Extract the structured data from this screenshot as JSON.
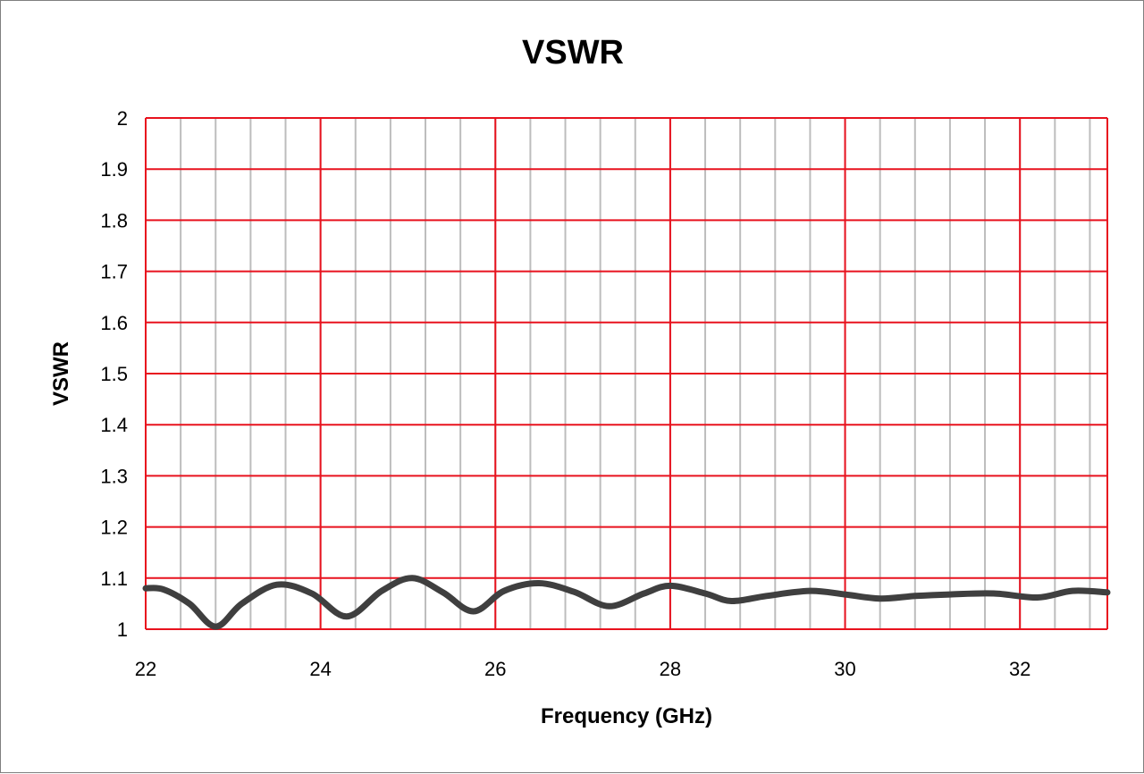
{
  "chart_data": {
    "type": "line",
    "title": "VSWR",
    "xlabel": "Frequency (GHz)",
    "ylabel": "VSWR",
    "xlim": [
      22,
      33
    ],
    "ylim": [
      1,
      2
    ],
    "x_major_ticks": [
      22,
      24,
      26,
      28,
      30,
      32
    ],
    "x_minor_step": 0.4,
    "y_ticks": [
      1,
      1.1,
      1.2,
      1.3,
      1.4,
      1.5,
      1.6,
      1.7,
      1.8,
      1.9,
      2
    ],
    "y_tick_labels": [
      "1",
      "1.1",
      "1.2",
      "1.3",
      "1.4",
      "1.5",
      "1.6",
      "1.7",
      "1.8",
      "1.9",
      "2"
    ],
    "grid": true,
    "legend": "none",
    "colors": {
      "major_grid": "#e8121e",
      "minor_grid": "#bdbdbd",
      "series_line": "#3f3f3f"
    },
    "series": [
      {
        "x": [
          22,
          22.2,
          22.5,
          22.8,
          23.1,
          23.5,
          23.9,
          24.3,
          24.7,
          25.05,
          25.4,
          25.75,
          26.1,
          26.5,
          26.9,
          27.3,
          27.7,
          28.0,
          28.4,
          28.7,
          29.1,
          29.6,
          30.0,
          30.4,
          30.8,
          31.2,
          31.7,
          32.2,
          32.6,
          33.0
        ],
        "y": [
          1.08,
          1.078,
          1.05,
          1.005,
          1.05,
          1.087,
          1.07,
          1.025,
          1.075,
          1.1,
          1.072,
          1.035,
          1.075,
          1.09,
          1.073,
          1.045,
          1.07,
          1.085,
          1.07,
          1.055,
          1.065,
          1.075,
          1.068,
          1.06,
          1.065,
          1.068,
          1.07,
          1.062,
          1.075,
          1.072
        ]
      }
    ]
  }
}
